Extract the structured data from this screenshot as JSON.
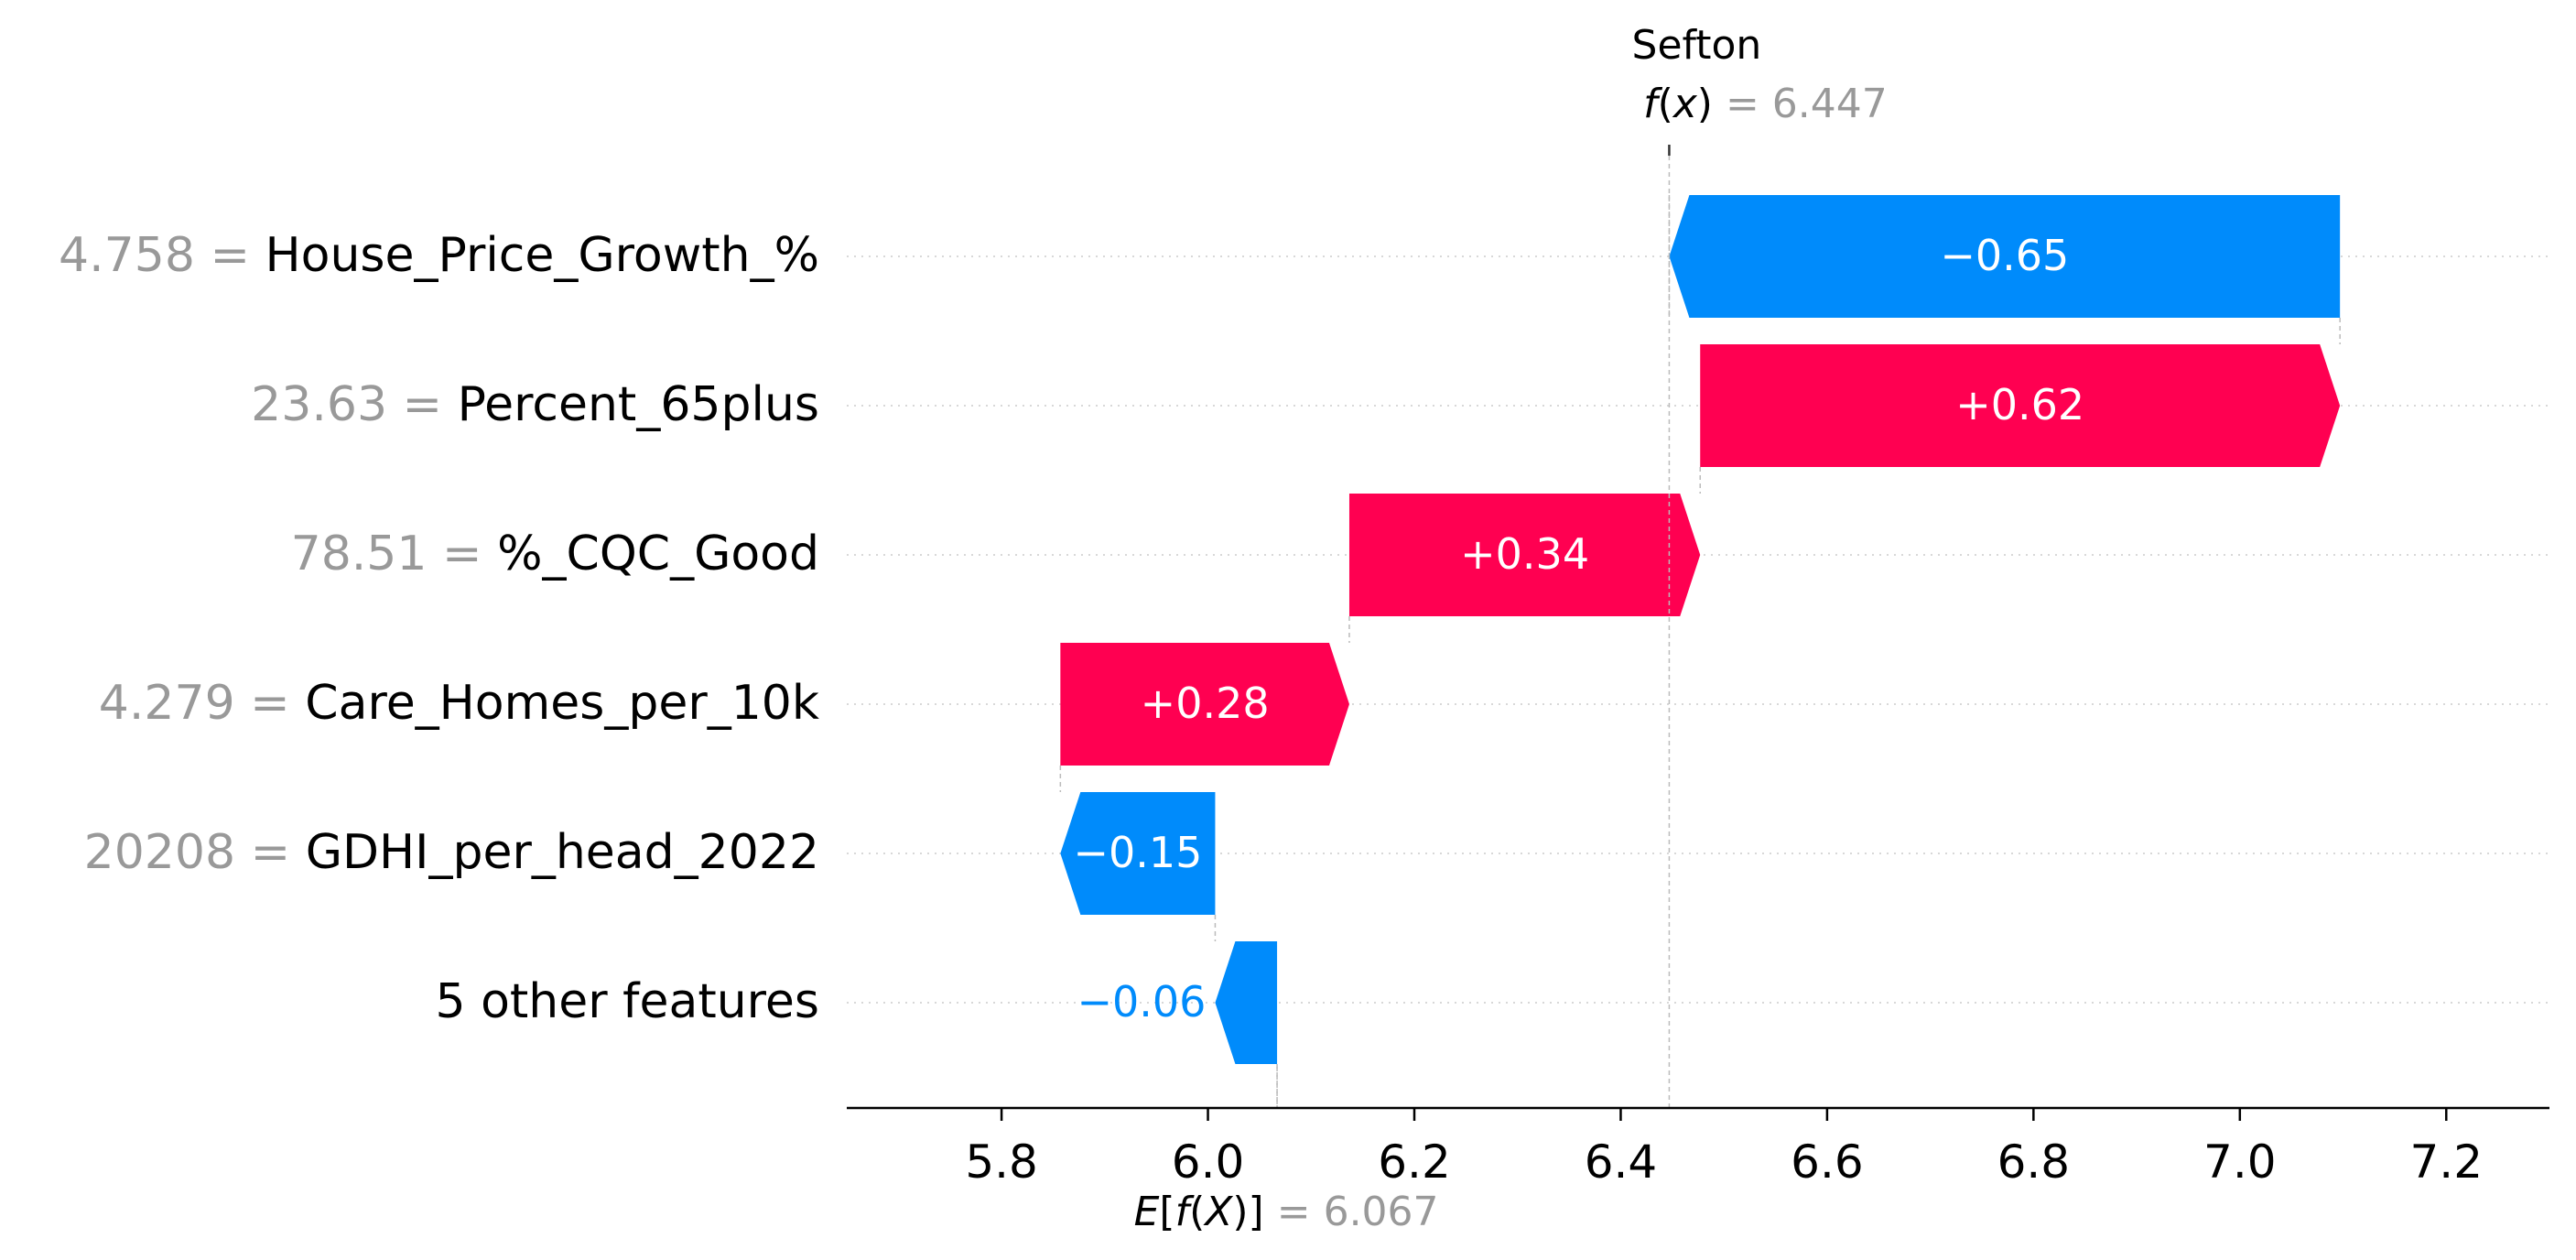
{
  "chart_data": {
    "type": "waterfall",
    "title": "Sefton",
    "fx": {
      "label_f": "f",
      "label_x": "x",
      "value_text": "= 6.447",
      "value": 6.447
    },
    "base": {
      "value_text": "= 6.067",
      "value": 6.067
    },
    "xlim": [
      5.65,
      7.3
    ],
    "xticks": [
      "5.8",
      "6.0",
      "6.2",
      "6.4",
      "6.6",
      "6.8",
      "7.0",
      "7.2"
    ],
    "grid": false,
    "features": [
      {
        "name": "House_Price_Growth_%",
        "value": "4.758",
        "contribution": -0.65,
        "label": "−0.65"
      },
      {
        "name": "Percent_65plus",
        "value": "23.63",
        "contribution": 0.62,
        "label": "+0.62"
      },
      {
        "name": "%_CQC_Good",
        "value": "78.51",
        "contribution": 0.34,
        "label": "+0.34"
      },
      {
        "name": "Care_Homes_per_10k",
        "value": "4.279",
        "contribution": 0.28,
        "label": "+0.28"
      },
      {
        "name": "GDHI_per_head_2022",
        "value": "20208",
        "contribution": -0.15,
        "label": "−0.15"
      },
      {
        "name": "5 other features",
        "value": "",
        "contribution": -0.06,
        "label": "−0.06"
      }
    ],
    "colors": {
      "positive": "#ff0051",
      "negative": "#008bfb",
      "muted": "#999999",
      "axis": "#000000"
    }
  }
}
